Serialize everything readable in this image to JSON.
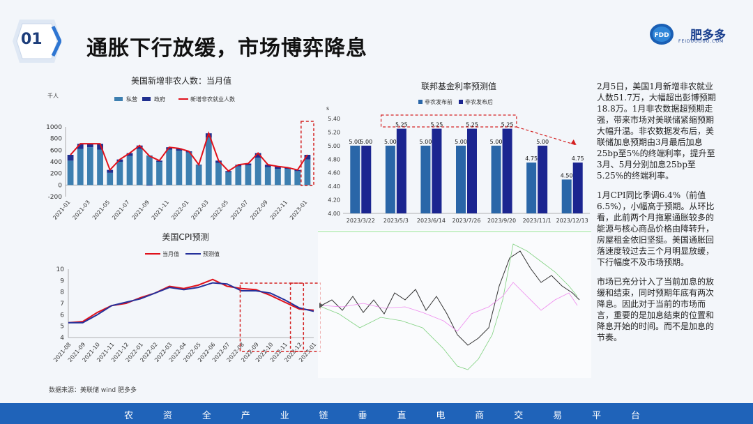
{
  "header": {
    "section_number": "01",
    "title": "通胀下行放缓，市场博弈降息",
    "logo_text": "肥多多",
    "logo_sub": "FEIDUODUO.COM",
    "logo_mark": "FDD"
  },
  "side_text": [
    "2月5日，美国1月新增非农就业人数51.7万，大幅超出彭博预期18.8万。1月非农数据超预期走强，带来市场对美联储紧缩预期大幅升温。非农数据发布后，美联储加息预期由3月最后加息25bp至5%的终端利率，提升至3月、5月分别加息25bp至5.25%的终端利率。",
    "1月CPI同比季调6.4%（前值6.5%），小幅高于预期。从环比看，此前两个月拖累通胀较多的能源与核心商品价格由降转升，房屋租金依旧坚挺。美国通胀回落速度较过去三个月明显放缓，下行幅度不及市场预期。",
    "市场已充分计入了当前加息的放缓和结束，同时预期年底有两次降息。因此对于当前的市场而言，重要的是加息结束的位置和降息开始的时间。而不是加息的节奏。"
  ],
  "source": "数据来源：美联储 wind 肥多多",
  "footer_chars": [
    "农",
    "资",
    "全",
    "产",
    "业",
    "链",
    "垂",
    "直",
    "电",
    "商",
    "交",
    "易",
    "平",
    "台"
  ],
  "colors": {
    "bar_private": "#3d7fb0",
    "bar_gov": "#1f2f8f",
    "line_red": "#e0111b",
    "line_blue": "#25319b",
    "bar_before": "#2a66a8",
    "bar_after": "#1b2590",
    "footer": "#1f63b9",
    "accent_dash": "#d42020"
  },
  "chart_data": [
    {
      "type": "bar",
      "title": "美国新增非农人数：当月值",
      "unit_label": "千人",
      "ylim": [
        -200,
        1000
      ],
      "yticks": [
        -200,
        0,
        200,
        400,
        600,
        800,
        1000
      ],
      "legend": [
        "私营",
        "政府",
        "新增非农就业人数"
      ],
      "x_tick_labels": [
        "2021-01",
        "2021-03",
        "2021-05",
        "2021-07",
        "2021-09",
        "2021-11",
        "2022-01",
        "2022-03",
        "2022-05",
        "2022-07",
        "2022-09",
        "2022-11",
        "2023-01"
      ],
      "categories": [
        "2021-01",
        "2021-02",
        "2021-03",
        "2021-04",
        "2021-05",
        "2021-06",
        "2021-07",
        "2021-08",
        "2021-09",
        "2021-10",
        "2021-11",
        "2021-12",
        "2022-01",
        "2022-02",
        "2022-03",
        "2022-04",
        "2022-05",
        "2022-06",
        "2022-07",
        "2022-08",
        "2022-09",
        "2022-10",
        "2022-11",
        "2022-12",
        "2023-01"
      ],
      "series": [
        {
          "name": "私营",
          "values": [
            420,
            620,
            650,
            610,
            210,
            400,
            500,
            620,
            510,
            400,
            610,
            590,
            560,
            350,
            820,
            380,
            220,
            320,
            340,
            470,
            310,
            280,
            280,
            240,
            440
          ]
        },
        {
          "name": "政府",
          "values": [
            100,
            90,
            60,
            100,
            50,
            40,
            50,
            60,
            -10,
            20,
            40,
            40,
            20,
            0,
            70,
            40,
            20,
            30,
            30,
            80,
            40,
            40,
            20,
            20,
            80
          ]
        },
        {
          "name": "新增非农就业人数",
          "values": [
            520,
            710,
            710,
            710,
            260,
            440,
            550,
            680,
            500,
            420,
            650,
            630,
            580,
            350,
            890,
            420,
            240,
            350,
            370,
            550,
            350,
            320,
            300,
            260,
            520
          ]
        }
      ]
    },
    {
      "type": "bar",
      "title": "联邦基金利率预测值",
      "unit_label": "s",
      "ylim": [
        4.0,
        5.4
      ],
      "yticks": [
        4.0,
        4.2,
        4.4,
        4.6,
        4.8,
        5.0,
        5.2,
        5.4
      ],
      "legend": [
        "非农发布前",
        "非农发布后"
      ],
      "categories": [
        "2023/3/22",
        "2023/5/3",
        "2023/6/14",
        "2023/7/26",
        "2023/9/20",
        "2023/11/1",
        "2023/12/13"
      ],
      "series": [
        {
          "name": "非农发布前",
          "values": [
            5.0,
            5.0,
            5.0,
            5.0,
            5.0,
            4.75,
            4.5
          ]
        },
        {
          "name": "非农发布后",
          "values": [
            5.0,
            5.25,
            5.25,
            5.25,
            5.25,
            5.0,
            4.75
          ]
        }
      ],
      "data_labels": [
        "5.00",
        "5.00",
        "5.00",
        "5.25",
        "5.00",
        "5.25",
        "5.00",
        "5.25",
        "5.00",
        "5.25",
        "4.75",
        "5.00",
        "4.50",
        "4.75"
      ]
    },
    {
      "type": "line",
      "title": "美国CPI预测",
      "ylim": [
        4,
        10
      ],
      "yticks": [
        4,
        5,
        6,
        7,
        8,
        9,
        10
      ],
      "legend": [
        "当月值",
        "预测值"
      ],
      "x": [
        "2021-08",
        "2021-09",
        "2021-10",
        "2021-11",
        "2021-12",
        "2022-01",
        "2022-02",
        "2022-03",
        "2022-04",
        "2022-05",
        "2022-06",
        "2022-07",
        "2022-08",
        "2022-09",
        "2022-10",
        "2022-11",
        "2022-12",
        "2023-01"
      ],
      "series": [
        {
          "name": "当月值",
          "values": [
            5.3,
            5.4,
            6.2,
            6.8,
            7.0,
            7.5,
            7.9,
            8.5,
            8.3,
            8.6,
            9.1,
            8.5,
            8.3,
            8.2,
            7.7,
            7.1,
            6.5,
            6.4
          ]
        },
        {
          "name": "预测值",
          "values": [
            5.3,
            5.3,
            6.0,
            6.8,
            7.1,
            7.4,
            7.9,
            8.4,
            8.2,
            8.4,
            8.8,
            8.7,
            8.1,
            8.1,
            7.9,
            7.3,
            6.6,
            6.3
          ]
        }
      ]
    }
  ]
}
